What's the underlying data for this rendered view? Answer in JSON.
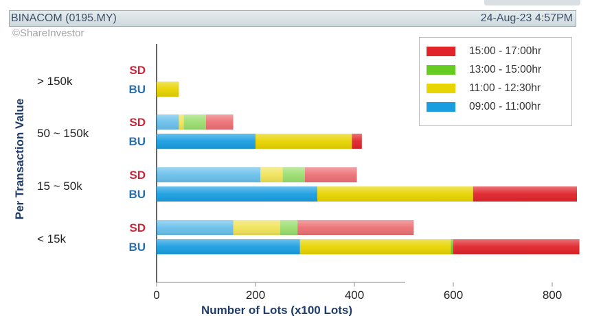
{
  "header": {
    "title": "BINACOM (0195.MY)",
    "timestamp": "24-Aug-23 4:57PM",
    "watermark": "©ShareInvestor"
  },
  "chart_data": {
    "type": "bar",
    "orientation": "horizontal",
    "stacked": true,
    "ylabel": "Per Transaction Value",
    "xlabel": "Number of Lots (x100 Lots)",
    "xlim": [
      0,
      850
    ],
    "xticks": [
      0,
      200,
      400,
      600,
      800
    ],
    "groups": [
      "> 150k",
      "50 ~ 150k",
      "15 ~ 50k",
      "< 15k"
    ],
    "row_labels": [
      "SD",
      "BU"
    ],
    "row_colors": {
      "SD": "#c9283a",
      "BU": "#2a6fae"
    },
    "series": [
      {
        "name": "09:00 - 11:00hr",
        "color": "#1a9ee0",
        "values": {
          "SD": [
            0,
            45,
            210,
            155
          ],
          "BU": [
            0,
            200,
            325,
            290
          ]
        }
      },
      {
        "name": "11:00 - 12:30hr",
        "color": "#e8d400",
        "values": {
          "SD": [
            0,
            10,
            45,
            95
          ],
          "BU": [
            45,
            195,
            315,
            305
          ]
        }
      },
      {
        "name": "13:00 - 15:00hr",
        "color": "#66cc22",
        "values": {
          "SD": [
            0,
            45,
            45,
            35
          ],
          "BU": [
            0,
            0,
            0,
            5
          ]
        }
      },
      {
        "name": "15:00 - 17:00hr",
        "color": "#e0242a",
        "values": {
          "SD": [
            0,
            55,
            105,
            235
          ],
          "BU": [
            0,
            20,
            210,
            255
          ]
        }
      }
    ],
    "sd_opacity": 0.65,
    "legend_position": "top-right",
    "legend_order": [
      "15:00 - 17:00hr",
      "13:00 - 15:00hr",
      "11:00 - 12:30hr",
      "09:00 - 11:00hr"
    ],
    "grid": false
  }
}
